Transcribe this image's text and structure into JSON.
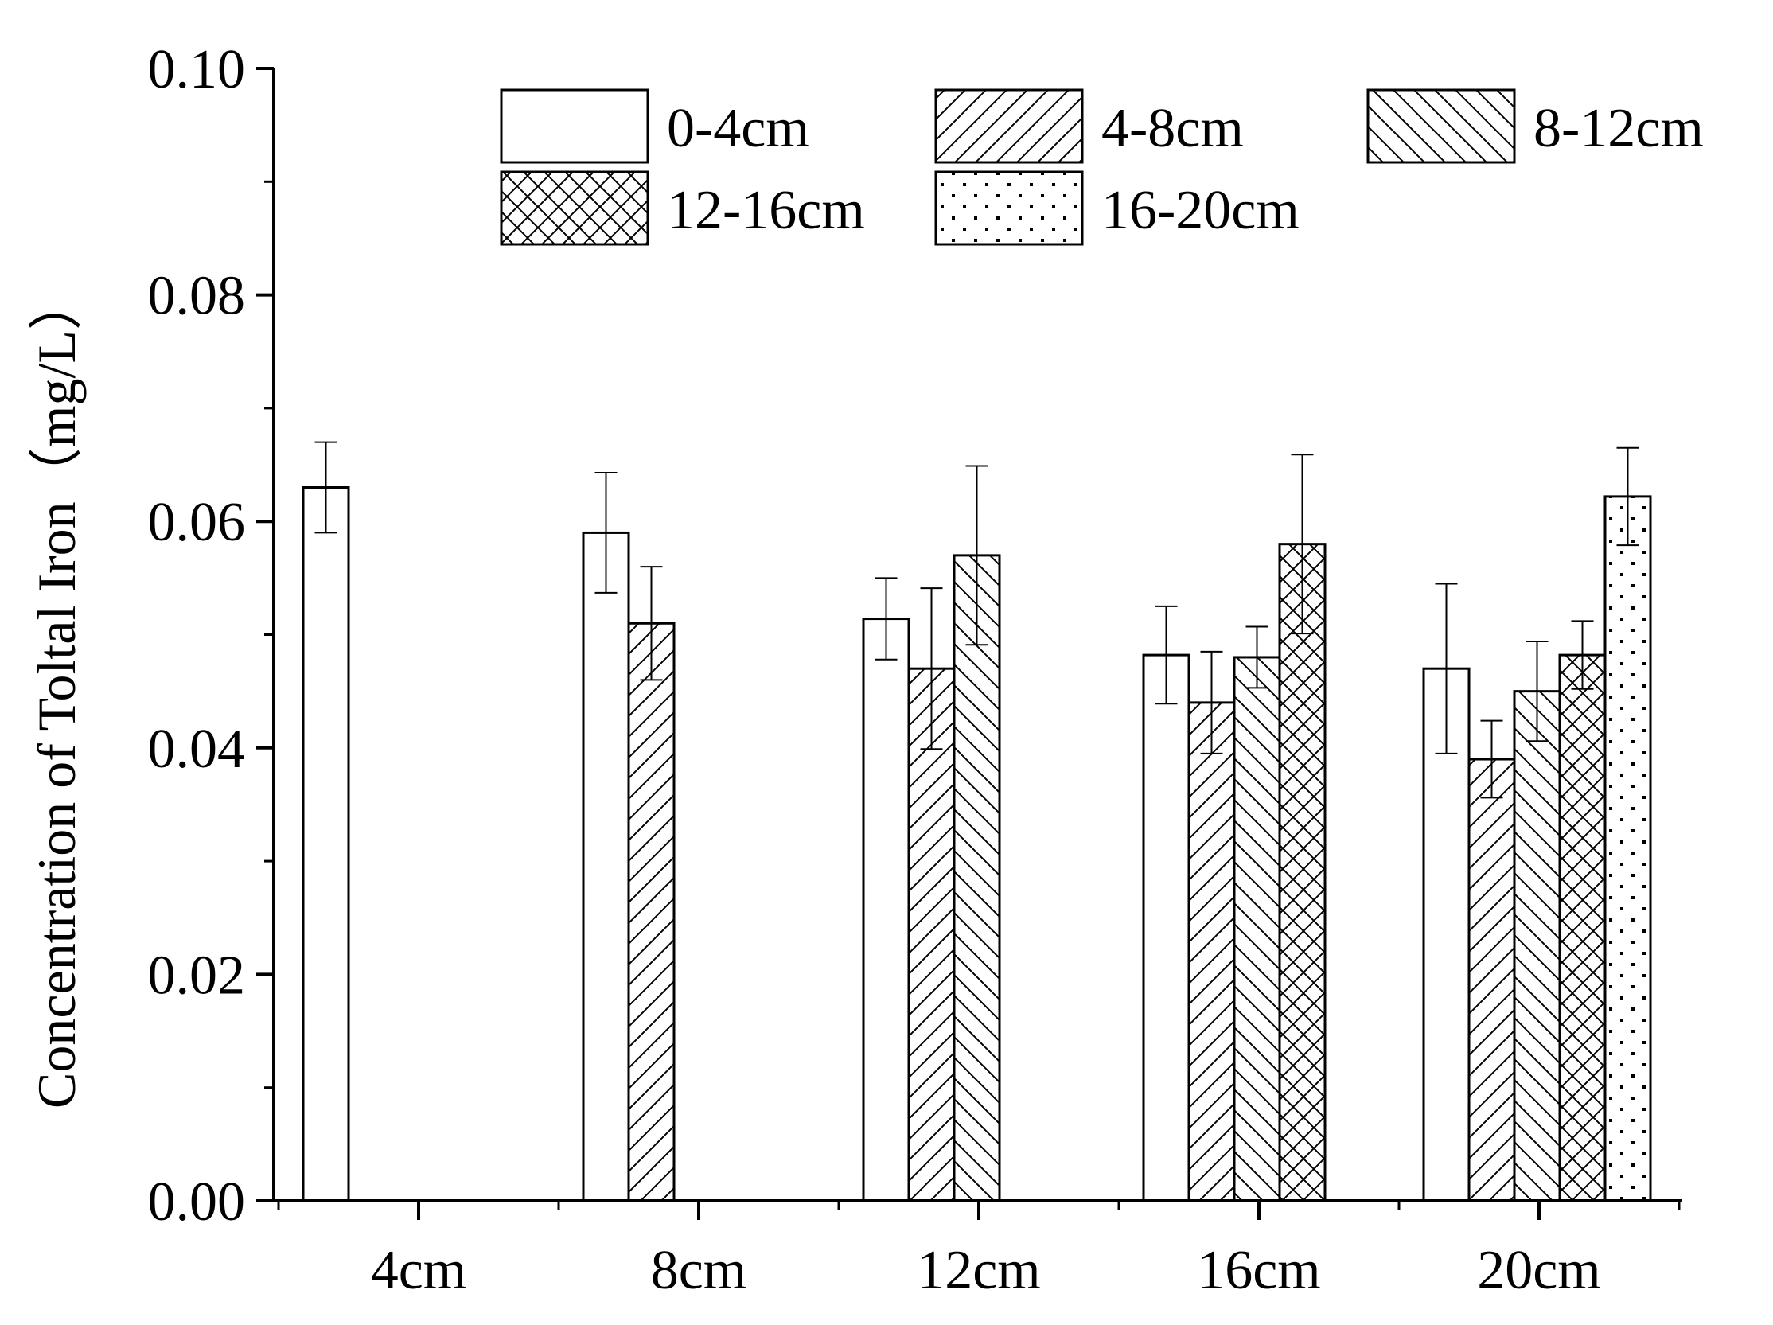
{
  "chart_data": {
    "type": "bar",
    "title": "",
    "xlabel": "",
    "ylabel": "Concentration of Toltal Iron（mg/L）",
    "ylim": [
      0,
      0.1
    ],
    "yticks": [
      "0.00",
      "0.02",
      "0.04",
      "0.06",
      "0.08",
      "0.10"
    ],
    "categories": [
      "4cm",
      "8cm",
      "12cm",
      "16cm",
      "20cm"
    ],
    "legend_position": "top",
    "series": [
      {
        "name": "0-4cm",
        "pattern": "none",
        "values": [
          0.063,
          0.059,
          0.0514,
          0.0482,
          0.047
        ],
        "errors": [
          0.004,
          0.0053,
          0.0036,
          0.0043,
          0.0075
        ]
      },
      {
        "name": "4-8cm",
        "pattern": "forward-diagonal",
        "values": [
          null,
          0.051,
          0.047,
          0.044,
          0.039
        ],
        "errors": [
          null,
          0.005,
          0.0071,
          0.0045,
          0.0034
        ]
      },
      {
        "name": "8-12cm",
        "pattern": "back-diagonal",
        "values": [
          null,
          null,
          0.057,
          0.048,
          0.045
        ],
        "errors": [
          null,
          null,
          0.0079,
          0.0027,
          0.0044
        ]
      },
      {
        "name": "12-16cm",
        "pattern": "crosshatch",
        "values": [
          null,
          null,
          null,
          0.058,
          0.0482
        ],
        "errors": [
          null,
          null,
          null,
          0.0079,
          0.003
        ]
      },
      {
        "name": "16-20cm",
        "pattern": "dots",
        "values": [
          null,
          null,
          null,
          null,
          0.0622
        ],
        "errors": [
          null,
          null,
          null,
          null,
          0.0043
        ]
      }
    ]
  }
}
